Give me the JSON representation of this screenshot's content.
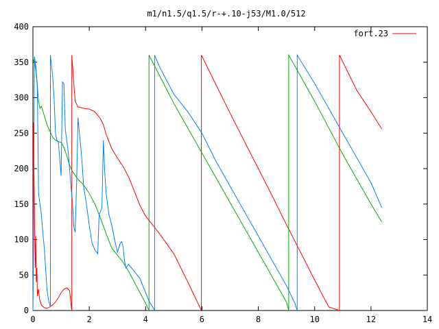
{
  "chart_data": {
    "type": "line",
    "title": "m1/n1.5/q1.5/r-+.10-j53/M1.0/512",
    "xlabel": "",
    "ylabel": "",
    "xlim": [
      0,
      14
    ],
    "ylim": [
      0,
      400
    ],
    "x_ticks": [
      0,
      2,
      4,
      6,
      8,
      10,
      12,
      14
    ],
    "y_ticks": [
      0,
      50,
      100,
      150,
      200,
      250,
      300,
      350,
      400
    ],
    "x_tick_labels": [
      "0",
      "2",
      "4",
      "6",
      "8",
      "10",
      "12",
      "14"
    ],
    "y_tick_labels": [
      "0",
      "50",
      "100",
      "150",
      "200",
      "250",
      "300",
      "350",
      "400"
    ],
    "grid": false,
    "legend_position": "top-right",
    "series": [
      {
        "name": "fort.23",
        "color": "#ff0000",
        "x": [
          0.0,
          0.02,
          0.05,
          0.08,
          0.1,
          0.12,
          0.14,
          0.16,
          0.2,
          0.24,
          0.3,
          0.4,
          0.5,
          0.6,
          0.7,
          0.8,
          0.9,
          1.0,
          1.1,
          1.2,
          1.3,
          1.36,
          1.38,
          1.38,
          1.45,
          1.5,
          1.6,
          1.8,
          2.0,
          2.2,
          2.4,
          2.5,
          2.6,
          2.8,
          3.0,
          3.2,
          3.4,
          3.6,
          3.8,
          4.0,
          4.2,
          4.5,
          5.0,
          5.5,
          5.98,
          5.98,
          6.5,
          7.0,
          7.5,
          8.0,
          8.5,
          9.0,
          9.5,
          10.0,
          10.5,
          10.88,
          10.88,
          11.5,
          12.0,
          12.38
        ],
        "y": [
          0,
          265,
          150,
          60,
          105,
          40,
          60,
          20,
          30,
          15,
          8,
          4,
          3,
          5,
          8,
          12,
          18,
          25,
          30,
          32,
          28,
          5,
          0,
          360,
          320,
          295,
          287,
          285,
          284,
          280,
          270,
          262,
          248,
          228,
          215,
          203,
          188,
          168,
          148,
          133,
          123,
          108,
          80,
          40,
          0,
          360,
          318,
          278,
          239,
          200,
          161,
          121,
          82,
          43,
          5,
          0,
          360,
          310,
          280,
          256
        ]
      },
      {
        "name": "",
        "color": "#00aa00",
        "x": [
          0.0,
          0.05,
          0.1,
          0.15,
          0.2,
          0.25,
          0.3,
          0.4,
          0.5,
          0.6,
          0.7,
          0.8,
          0.9,
          1.0,
          1.1,
          1.2,
          1.3,
          1.4,
          1.6,
          1.8,
          2.0,
          2.2,
          2.4,
          2.6,
          2.8,
          3.0,
          3.2,
          3.4,
          3.6,
          3.8,
          4.0,
          4.1,
          4.12,
          4.12,
          5.0,
          6.0,
          7.0,
          8.0,
          9.0,
          9.08,
          9.08,
          10.0,
          11.0,
          12.0,
          12.38
        ],
        "y": [
          355,
          350,
          340,
          320,
          295,
          285,
          288,
          275,
          262,
          253,
          244,
          240,
          238,
          237,
          230,
          218,
          205,
          196,
          185,
          177,
          165,
          150,
          130,
          108,
          88,
          78,
          68,
          55,
          40,
          25,
          10,
          2,
          0,
          360,
          292,
          222,
          152,
          82,
          12,
          0,
          360,
          295,
          220,
          150,
          125
        ]
      },
      {
        "name": "",
        "color": "#0080ff",
        "x": [
          0.0,
          0.02,
          0.05,
          0.1,
          0.15,
          0.18,
          0.2,
          0.25,
          0.3,
          0.35,
          0.4,
          0.45,
          0.5,
          0.55,
          0.6,
          0.62,
          0.62,
          0.7,
          0.75,
          0.8,
          0.85,
          0.9,
          0.95,
          1.0,
          1.05,
          1.1,
          1.15,
          1.2,
          1.25,
          1.3,
          1.35,
          1.4,
          1.45,
          1.5,
          1.55,
          1.6,
          1.65,
          1.7,
          1.75,
          1.8,
          1.9,
          2.0,
          2.1,
          2.2,
          2.3,
          2.35,
          2.45,
          2.5,
          2.55,
          2.6,
          2.65,
          2.7,
          2.8,
          2.9,
          3.0,
          3.1,
          3.15,
          3.2,
          3.25,
          3.3,
          3.4,
          3.5,
          3.6,
          3.8,
          4.0,
          4.1,
          4.2,
          4.25,
          4.32,
          4.32,
          4.5,
          5.0,
          5.5,
          6.0,
          6.5,
          7.0,
          7.5,
          8.0,
          8.5,
          9.0,
          9.3,
          9.38,
          9.38,
          10.0,
          11.0,
          12.0,
          12.38
        ],
        "y": [
          0,
          80,
          358,
          345,
          320,
          240,
          165,
          150,
          135,
          110,
          90,
          60,
          30,
          15,
          8,
          5,
          360,
          330,
          300,
          250,
          240,
          238,
          215,
          190,
          322,
          320,
          255,
          240,
          225,
          200,
          175,
          155,
          118,
          110,
          180,
          272,
          250,
          230,
          205,
          175,
          150,
          120,
          95,
          85,
          80,
          135,
          145,
          240,
          195,
          165,
          150,
          135,
          120,
          100,
          82,
          95,
          97,
          90,
          70,
          60,
          65,
          60,
          55,
          45,
          25,
          15,
          8,
          5,
          0,
          360,
          343,
          305,
          280,
          250,
          210,
          175,
          140,
          105,
          70,
          35,
          10,
          0,
          360,
          320,
          250,
          180,
          145
        ]
      }
    ]
  }
}
